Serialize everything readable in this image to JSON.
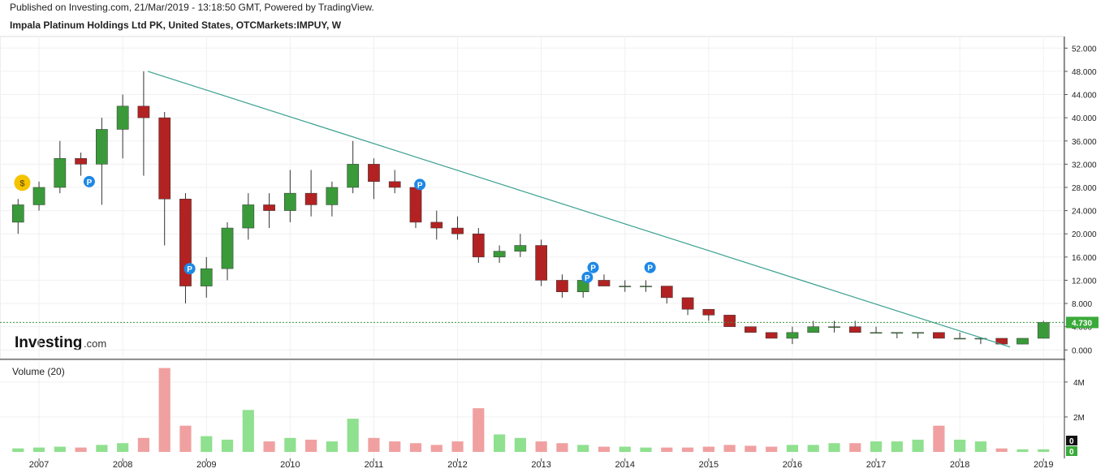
{
  "chart_data": {
    "type": "candlestick",
    "published": "Published on Investing.com, 21/Mar/2019 - 13:18:50 GMT, Powered by TradingView.",
    "title": "Impala Platinum Holdings Ltd PK, United States, OTCMarkets:IMPUY, W",
    "logo": "Investing",
    "logo_suffix": ".com",
    "volume_title": "Volume (20)",
    "up_color": "#3a9a3a",
    "down_color": "#b22222",
    "volume_up_color": "#8fe08f",
    "volume_down_color": "#f0a0a0",
    "grid": true,
    "xlim": [
      2006.534,
      2019.24
    ],
    "xticks": [
      2007,
      2008,
      2009,
      2010,
      2011,
      2012,
      2013,
      2014,
      2015,
      2016,
      2017,
      2018,
      2019
    ],
    "ylim": [
      -1.5,
      54
    ],
    "yticks": [
      {
        "value": 0,
        "label": "0.000"
      },
      {
        "value": 4,
        "label": "4.000"
      },
      {
        "value": 8,
        "label": "8.000"
      },
      {
        "value": 12,
        "label": "12.000"
      },
      {
        "value": 16,
        "label": "16.000"
      },
      {
        "value": 20,
        "label": "20.000"
      },
      {
        "value": 24,
        "label": "24.000"
      },
      {
        "value": 28,
        "label": "28.000"
      },
      {
        "value": 32,
        "label": "32.000"
      },
      {
        "value": 36,
        "label": "36.000"
      },
      {
        "value": 40,
        "label": "40.000"
      },
      {
        "value": 44,
        "label": "44.000"
      },
      {
        "value": 48,
        "label": "48.000"
      },
      {
        "value": 52,
        "label": "52.000"
      }
    ],
    "volume_ylim": [
      0,
      5200000
    ],
    "volume_yticks": [
      {
        "value": 2000000,
        "label": "2M"
      },
      {
        "value": 4000000,
        "label": "4M"
      }
    ],
    "x": [
      2006.75,
      2007.0,
      2007.25,
      2007.5,
      2007.75,
      2008.0,
      2008.25,
      2008.5,
      2008.75,
      2009.0,
      2009.25,
      2009.5,
      2009.75,
      2010.0,
      2010.25,
      2010.5,
      2010.75,
      2011.0,
      2011.25,
      2011.5,
      2011.75,
      2012.0,
      2012.25,
      2012.5,
      2012.75,
      2013.0,
      2013.25,
      2013.5,
      2013.75,
      2014.0,
      2014.25,
      2014.5,
      2014.75,
      2015.0,
      2015.25,
      2015.5,
      2015.75,
      2016.0,
      2016.25,
      2016.5,
      2016.75,
      2017.0,
      2017.25,
      2017.5,
      2017.75,
      2018.0,
      2018.25,
      2018.5,
      2018.75,
      2019.0
    ],
    "open": [
      22,
      25,
      28,
      33,
      32,
      38,
      42,
      40,
      26,
      11,
      14,
      21,
      25,
      24,
      27,
      25,
      28,
      32,
      29,
      28,
      22,
      21,
      20,
      16,
      17,
      18,
      12,
      10,
      12,
      11,
      11,
      11,
      9,
      7,
      6,
      4,
      3,
      2,
      3,
      4,
      4,
      3,
      3,
      3,
      3,
      2,
      2,
      2,
      1,
      2
    ],
    "high": [
      26,
      29,
      36,
      34,
      40,
      44,
      48,
      41,
      27,
      16,
      22,
      27,
      27,
      31,
      31,
      29,
      36,
      33,
      31,
      29,
      24,
      23,
      21,
      18,
      20,
      19,
      13,
      13,
      13,
      12,
      12,
      11,
      9,
      7,
      6,
      4,
      3,
      4,
      5,
      5,
      5,
      4,
      3,
      3,
      3,
      3,
      2,
      2,
      2,
      5
    ],
    "low": [
      20,
      24,
      27,
      30,
      25,
      33,
      30,
      18,
      8,
      9,
      12,
      19,
      21,
      22,
      23,
      23,
      27,
      26,
      27,
      21,
      19,
      19,
      15,
      15,
      16,
      11,
      9,
      9,
      11,
      10,
      10,
      8,
      6,
      5,
      4,
      3,
      2,
      1,
      3,
      3,
      3,
      3,
      2,
      2,
      2,
      2,
      1,
      1,
      1,
      2
    ],
    "close": [
      25,
      28,
      33,
      32,
      38,
      42,
      40,
      26,
      11,
      14,
      21,
      25,
      24,
      27,
      25,
      28,
      32,
      29,
      28,
      22,
      21,
      20,
      16,
      17,
      18,
      12,
      10,
      12,
      11,
      11,
      11,
      9,
      7,
      6,
      4,
      3,
      2,
      3,
      4,
      4,
      3,
      3,
      3,
      3,
      2,
      2,
      2,
      1,
      2,
      4.73
    ],
    "volume": [
      200000,
      250000,
      300000,
      250000,
      400000,
      500000,
      800000,
      4800000,
      1500000,
      900000,
      700000,
      2400000,
      600000,
      800000,
      700000,
      600000,
      1900000,
      800000,
      600000,
      500000,
      400000,
      600000,
      2500000,
      1000000,
      800000,
      600000,
      500000,
      400000,
      300000,
      300000,
      250000,
      250000,
      250000,
      300000,
      400000,
      350000,
      300000,
      400000,
      400000,
      500000,
      500000,
      600000,
      600000,
      700000,
      1500000,
      700000,
      600000,
      200000,
      150000,
      150000
    ],
    "last_price": 4.73,
    "last_price_label": "4.730",
    "volume_last_labels": [
      "0",
      "0"
    ],
    "trendline": {
      "x": [
        2008.3,
        2018.6
      ],
      "y": [
        48,
        0.5
      ],
      "color": "#3aa090"
    },
    "markers": [
      {
        "x": 2006.8,
        "y": 28.8,
        "label": "$"
      },
      {
        "x": 2007.6,
        "y": 29,
        "label": "P"
      },
      {
        "x": 2008.8,
        "y": 14,
        "label": "P"
      },
      {
        "x": 2011.55,
        "y": 28.5,
        "label": "P"
      },
      {
        "x": 2013.55,
        "y": 12.5,
        "label": "P"
      },
      {
        "x": 2013.62,
        "y": 14.2,
        "label": "P"
      },
      {
        "x": 2014.3,
        "y": 14.2,
        "label": "P"
      }
    ]
  }
}
